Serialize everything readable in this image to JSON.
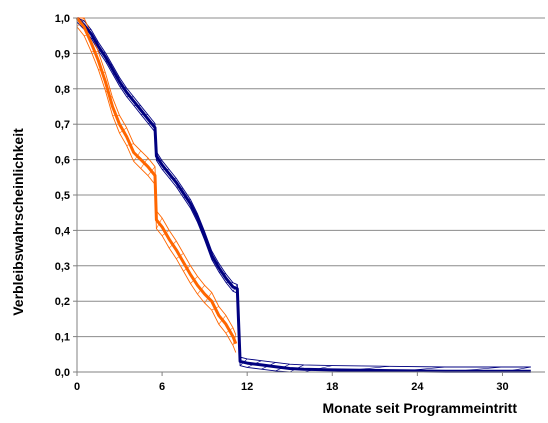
{
  "chart_data": {
    "type": "line",
    "title": "",
    "xlabel": "Monate seit Programmeintritt",
    "ylabel": "Verbleibswahrscheinlichkeit",
    "xlim": [
      0,
      33
    ],
    "ylim": [
      0,
      1
    ],
    "grid": true,
    "xticks": [
      0,
      6,
      12,
      18,
      24,
      30
    ],
    "xtick_labels": [
      "0",
      "6",
      "12",
      "18",
      "24",
      "30"
    ],
    "yticks": [
      0,
      0.1,
      0.2,
      0.3,
      0.4,
      0.5,
      0.6,
      0.7,
      0.8,
      0.9,
      1.0
    ],
    "ytick_labels": [
      "0,0",
      "0,1",
      "0,2",
      "0,3",
      "0,4",
      "0,5",
      "0,6",
      "0,7",
      "0,8",
      "0,9",
      "1,0"
    ],
    "series": [
      {
        "color": "#000080",
        "band_color": "#000080",
        "band_half_width": 0.012,
        "points": [
          [
            0,
            1.0
          ],
          [
            0.5,
            0.98
          ],
          [
            1,
            0.955
          ],
          [
            1.5,
            0.92
          ],
          [
            2,
            0.89
          ],
          [
            2.5,
            0.855
          ],
          [
            3,
            0.82
          ],
          [
            3.5,
            0.79
          ],
          [
            4,
            0.765
          ],
          [
            4.5,
            0.74
          ],
          [
            5,
            0.715
          ],
          [
            5.5,
            0.69
          ],
          [
            5.6,
            0.61
          ],
          [
            6,
            0.585
          ],
          [
            6.5,
            0.56
          ],
          [
            7,
            0.535
          ],
          [
            7.5,
            0.505
          ],
          [
            8,
            0.475
          ],
          [
            8.5,
            0.435
          ],
          [
            9,
            0.385
          ],
          [
            9.5,
            0.33
          ],
          [
            10,
            0.295
          ],
          [
            10.5,
            0.265
          ],
          [
            11,
            0.24
          ],
          [
            11.3,
            0.235
          ],
          [
            11.5,
            0.03
          ],
          [
            12,
            0.025
          ],
          [
            13,
            0.02
          ],
          [
            14,
            0.015
          ],
          [
            15,
            0.01
          ],
          [
            16,
            0.008
          ],
          [
            18,
            0.006
          ],
          [
            22,
            0.004
          ],
          [
            26,
            0.002
          ],
          [
            30,
            0.002
          ],
          [
            32,
            0.002
          ]
        ]
      },
      {
        "color": "#FF6600",
        "band_color": "#FF6600",
        "band_half_width": 0.025,
        "points": [
          [
            0,
            1.0
          ],
          [
            0.5,
            0.975
          ],
          [
            1,
            0.93
          ],
          [
            1.5,
            0.88
          ],
          [
            2,
            0.82
          ],
          [
            2.5,
            0.75
          ],
          [
            3,
            0.7
          ],
          [
            3.5,
            0.665
          ],
          [
            4,
            0.62
          ],
          [
            4.5,
            0.6
          ],
          [
            5,
            0.58
          ],
          [
            5.5,
            0.555
          ],
          [
            5.6,
            0.43
          ],
          [
            6,
            0.41
          ],
          [
            6.5,
            0.375
          ],
          [
            7,
            0.345
          ],
          [
            7.5,
            0.31
          ],
          [
            8,
            0.275
          ],
          [
            8.5,
            0.245
          ],
          [
            9,
            0.22
          ],
          [
            9.5,
            0.2
          ],
          [
            10,
            0.16
          ],
          [
            10.5,
            0.135
          ],
          [
            11,
            0.1
          ],
          [
            11.2,
            0.08
          ]
        ]
      }
    ]
  }
}
